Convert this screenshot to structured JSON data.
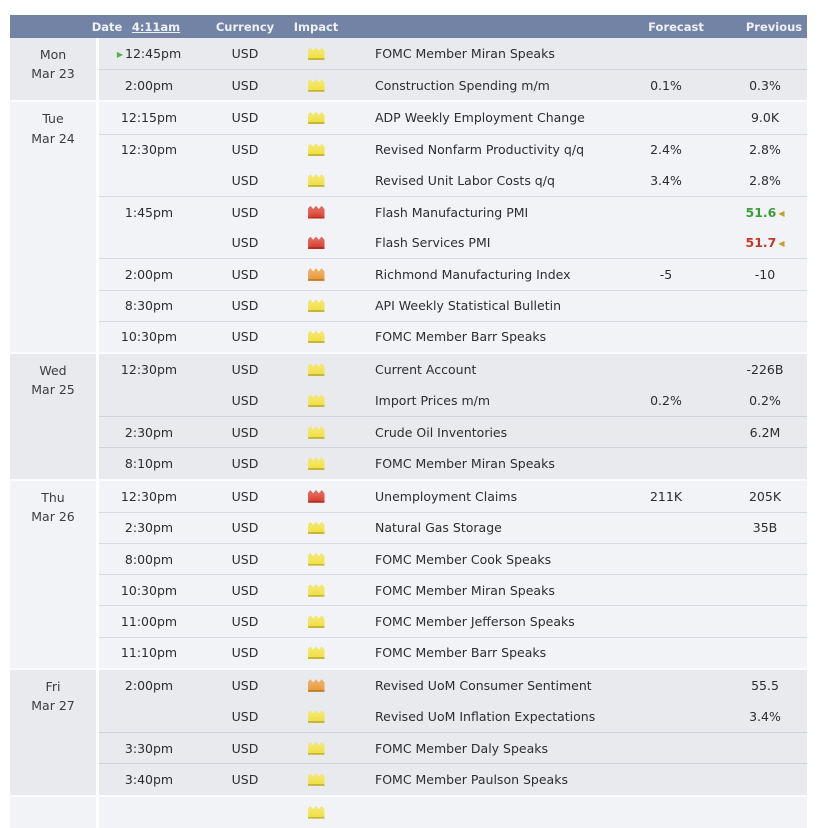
{
  "header": {
    "date_label": "Date",
    "time_label": "4:11am",
    "currency_label": "Currency",
    "impact_label": "Impact",
    "forecast_label": "Forecast",
    "previous_label": "Previous"
  },
  "colors": {
    "header_bg": "#7383a6",
    "header_text": "#eef1f7",
    "group_shade_a": "#e8eaee",
    "group_shade_b": "#f2f3f6",
    "impact_yellow": "#f0df3a",
    "impact_orange": "#e9952f",
    "impact_red": "#d93526",
    "value_good": "#3d9c3d",
    "value_bad": "#c03a2b",
    "revised_marker": "#bfa32a",
    "play_marker": "#55b14b"
  },
  "icons": {
    "impact": "impact-folder-icon",
    "in_progress": "green-play-icon",
    "revised": "revised-left-triangle-icon"
  },
  "days": [
    {
      "day": "Mon",
      "date": "Mar 23",
      "shade": "a",
      "events": [
        {
          "time": "12:45pm",
          "marker": true,
          "currency": "USD",
          "impact": "yellow",
          "title": "FOMC Member Miran Speaks",
          "forecast": "",
          "previous": "",
          "previous_tone": "normal",
          "revised": false
        },
        {
          "time": "2:00pm",
          "marker": false,
          "currency": "USD",
          "impact": "yellow",
          "title": "Construction Spending m/m",
          "forecast": "0.1%",
          "previous": "0.3%",
          "previous_tone": "normal",
          "revised": false
        }
      ]
    },
    {
      "day": "Tue",
      "date": "Mar 24",
      "shade": "b",
      "events": [
        {
          "time": "12:15pm",
          "marker": false,
          "currency": "USD",
          "impact": "yellow",
          "title": "ADP Weekly Employment Change",
          "forecast": "",
          "previous": "9.0K",
          "previous_tone": "normal",
          "revised": false
        },
        {
          "time": "12:30pm",
          "marker": false,
          "currency": "USD",
          "impact": "yellow",
          "title": "Revised Nonfarm Productivity q/q",
          "forecast": "2.4%",
          "previous": "2.8%",
          "previous_tone": "normal",
          "revised": false
        },
        {
          "time": "",
          "marker": false,
          "currency": "USD",
          "impact": "yellow",
          "title": "Revised Unit Labor Costs q/q",
          "forecast": "3.4%",
          "previous": "2.8%",
          "previous_tone": "normal",
          "revised": false
        },
        {
          "time": "1:45pm",
          "marker": false,
          "currency": "USD",
          "impact": "red",
          "title": "Flash Manufacturing PMI",
          "forecast": "",
          "previous": "51.6",
          "previous_tone": "good",
          "revised": true
        },
        {
          "time": "",
          "marker": false,
          "currency": "USD",
          "impact": "red",
          "title": "Flash Services PMI",
          "forecast": "",
          "previous": "51.7",
          "previous_tone": "bad",
          "revised": true
        },
        {
          "time": "2:00pm",
          "marker": false,
          "currency": "USD",
          "impact": "orange",
          "title": "Richmond Manufacturing Index",
          "forecast": "-5",
          "previous": "-10",
          "previous_tone": "normal",
          "revised": false
        },
        {
          "time": "8:30pm",
          "marker": false,
          "currency": "USD",
          "impact": "yellow",
          "title": "API Weekly Statistical Bulletin",
          "forecast": "",
          "previous": "",
          "previous_tone": "normal",
          "revised": false
        },
        {
          "time": "10:30pm",
          "marker": false,
          "currency": "USD",
          "impact": "yellow",
          "title": "FOMC Member Barr Speaks",
          "forecast": "",
          "previous": "",
          "previous_tone": "normal",
          "revised": false
        }
      ]
    },
    {
      "day": "Wed",
      "date": "Mar 25",
      "shade": "a",
      "events": [
        {
          "time": "12:30pm",
          "marker": false,
          "currency": "USD",
          "impact": "yellow",
          "title": "Current Account",
          "forecast": "",
          "previous": "-226B",
          "previous_tone": "normal",
          "revised": false
        },
        {
          "time": "",
          "marker": false,
          "currency": "USD",
          "impact": "yellow",
          "title": "Import Prices m/m",
          "forecast": "0.2%",
          "previous": "0.2%",
          "previous_tone": "normal",
          "revised": false
        },
        {
          "time": "2:30pm",
          "marker": false,
          "currency": "USD",
          "impact": "yellow",
          "title": "Crude Oil Inventories",
          "forecast": "",
          "previous": "6.2M",
          "previous_tone": "normal",
          "revised": false
        },
        {
          "time": "8:10pm",
          "marker": false,
          "currency": "USD",
          "impact": "yellow",
          "title": "FOMC Member Miran Speaks",
          "forecast": "",
          "previous": "",
          "previous_tone": "normal",
          "revised": false
        }
      ]
    },
    {
      "day": "Thu",
      "date": "Mar 26",
      "shade": "b",
      "events": [
        {
          "time": "12:30pm",
          "marker": false,
          "currency": "USD",
          "impact": "red",
          "title": "Unemployment Claims",
          "forecast": "211K",
          "previous": "205K",
          "previous_tone": "normal",
          "revised": false
        },
        {
          "time": "2:30pm",
          "marker": false,
          "currency": "USD",
          "impact": "yellow",
          "title": "Natural Gas Storage",
          "forecast": "",
          "previous": "35B",
          "previous_tone": "normal",
          "revised": false
        },
        {
          "time": "8:00pm",
          "marker": false,
          "currency": "USD",
          "impact": "yellow",
          "title": "FOMC Member Cook Speaks",
          "forecast": "",
          "previous": "",
          "previous_tone": "normal",
          "revised": false
        },
        {
          "time": "10:30pm",
          "marker": false,
          "currency": "USD",
          "impact": "yellow",
          "title": "FOMC Member Miran Speaks",
          "forecast": "",
          "previous": "",
          "previous_tone": "normal",
          "revised": false
        },
        {
          "time": "11:00pm",
          "marker": false,
          "currency": "USD",
          "impact": "yellow",
          "title": "FOMC Member Jefferson Speaks",
          "forecast": "",
          "previous": "",
          "previous_tone": "normal",
          "revised": false
        },
        {
          "time": "11:10pm",
          "marker": false,
          "currency": "USD",
          "impact": "yellow",
          "title": "FOMC Member Barr Speaks",
          "forecast": "",
          "previous": "",
          "previous_tone": "normal",
          "revised": false
        }
      ]
    },
    {
      "day": "Fri",
      "date": "Mar 27",
      "shade": "a",
      "events": [
        {
          "time": "2:00pm",
          "marker": false,
          "currency": "USD",
          "impact": "orange",
          "title": "Revised UoM Consumer Sentiment",
          "forecast": "",
          "previous": "55.5",
          "previous_tone": "normal",
          "revised": false
        },
        {
          "time": "",
          "marker": false,
          "currency": "USD",
          "impact": "yellow",
          "title": "Revised UoM Inflation Expectations",
          "forecast": "",
          "previous": "3.4%",
          "previous_tone": "normal",
          "revised": false
        },
        {
          "time": "3:30pm",
          "marker": false,
          "currency": "USD",
          "impact": "yellow",
          "title": "FOMC Member Daly Speaks",
          "forecast": "",
          "previous": "",
          "previous_tone": "normal",
          "revised": false
        },
        {
          "time": "3:40pm",
          "marker": false,
          "currency": "USD",
          "impact": "yellow",
          "title": "FOMC Member Paulson Speaks",
          "forecast": "",
          "previous": "",
          "previous_tone": "normal",
          "revised": false
        }
      ]
    }
  ],
  "partial_row": {
    "shade": "b",
    "impact": "yellow"
  }
}
